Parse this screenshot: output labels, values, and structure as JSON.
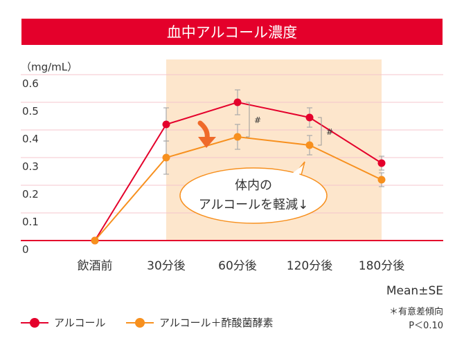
{
  "chart_data": {
    "type": "line",
    "title": "血中アルコール濃度",
    "ylabel": "（mg/mL）",
    "categories": [
      "飲酒前",
      "30分後",
      "60分後",
      "120分後",
      "180分後"
    ],
    "yticks": [
      "0",
      "0.1",
      "0.2",
      "0.3",
      "0.4",
      "0.5",
      "0.6"
    ],
    "ylim": [
      0,
      0.65
    ],
    "series": [
      {
        "name": "アルコール",
        "color": "#e4002b",
        "values": [
          0,
          0.42,
          0.5,
          0.445,
          0.28
        ],
        "err": [
          0,
          0.06,
          0.045,
          0.035,
          0.025
        ]
      },
      {
        "name": "アルコール＋酢酸菌酵素",
        "color": "#f7901e",
        "values": [
          0,
          0.3,
          0.375,
          0.345,
          0.22
        ],
        "err": [
          0,
          0.06,
          0.045,
          0.035,
          0.025
        ]
      }
    ],
    "significance": [
      {
        "category": "60分後",
        "label": "#"
      },
      {
        "category": "120分後",
        "label": "#"
      }
    ],
    "annotation": {
      "text_line1": "体内の",
      "text_line2": "アルコールを軽減↓"
    },
    "highlight_range": [
      "30分後",
      "180分後"
    ],
    "grid": true
  },
  "stat_label": "Mean±SE",
  "note_line1": "＊有意差傾向",
  "note_line2": "P＜0.10"
}
